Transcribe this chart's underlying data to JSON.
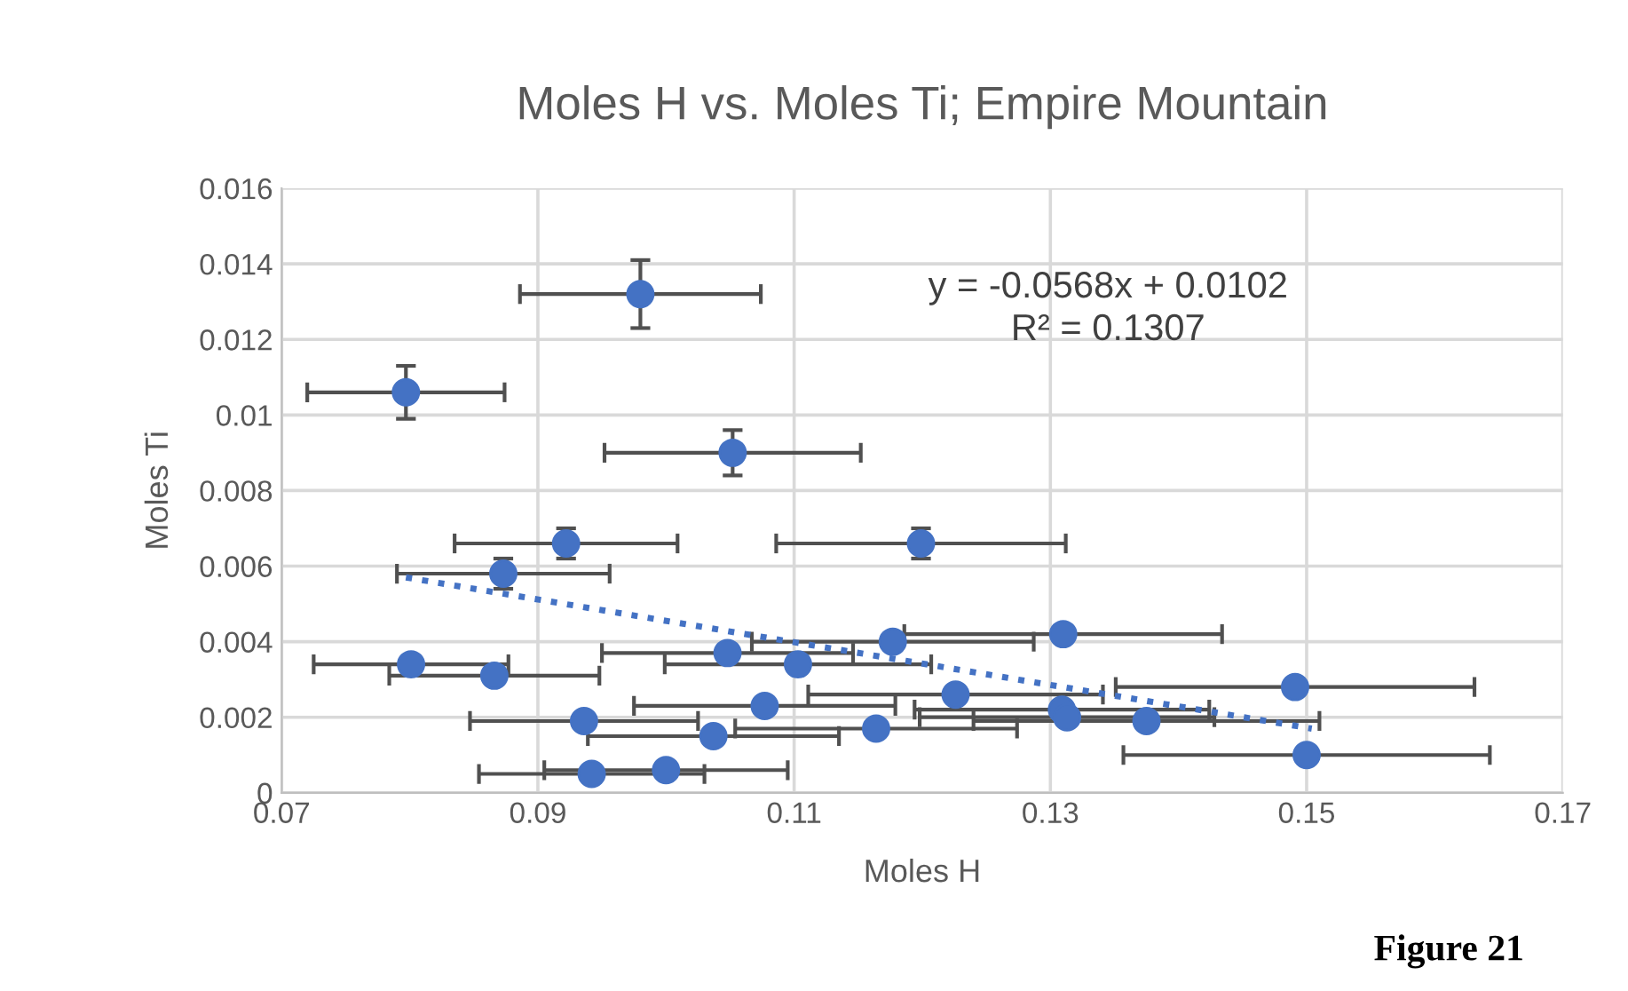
{
  "chart_data": {
    "type": "scatter",
    "title": "Moles H vs. Moles Ti; Empire Mountain",
    "xlabel": "Moles H",
    "ylabel": "Moles Ti",
    "xlim": [
      0.07,
      0.17
    ],
    "xticks": [
      0.07,
      0.09,
      0.11,
      0.13,
      0.15,
      0.17
    ],
    "ylim": [
      0,
      0.016
    ],
    "yticks": [
      0,
      0.002,
      0.004,
      0.006,
      0.008,
      0.01,
      0.012,
      0.014,
      0.016
    ],
    "grid": true,
    "annotations": [
      "y = -0.0568x + 0.0102\nR² = 0.1307",
      "Figure 21"
    ],
    "series": [
      {
        "color": "#4472c4",
        "marker": "circle",
        "x": [
          0.098,
          0.0797,
          0.1052,
          0.0922,
          0.1199,
          0.0873,
          0.131,
          0.1177,
          0.1048,
          0.0801,
          0.1103,
          0.0866,
          0.1491,
          0.1226,
          0.1077,
          0.1309,
          0.1313,
          0.1375,
          0.0936,
          0.1037,
          0.1164,
          0.15,
          0.1,
          0.0942
        ],
        "values": [
          0.0132,
          0.0106,
          0.009,
          0.0066,
          0.0066,
          0.0058,
          0.0042,
          0.004,
          0.0037,
          0.0034,
          0.0034,
          0.0031,
          0.0028,
          0.0026,
          0.0023,
          0.0022,
          0.002,
          0.0019,
          0.0019,
          0.0015,
          0.0017,
          0.001,
          0.0006,
          0.0005
        ],
        "errors": [
          0.0009,
          0.0007,
          0.0006,
          0.0004,
          0.0004,
          0.0004,
          null,
          null,
          null,
          null,
          null,
          null,
          null,
          null,
          null,
          null,
          null,
          null,
          null,
          null,
          null,
          null,
          null,
          null
        ],
        "xerrors": [
          0.0094,
          0.0077,
          0.01,
          0.0087,
          0.0113,
          0.0083,
          0.0124,
          0.011,
          0.0098,
          0.0076,
          0.0104,
          0.0082,
          0.014,
          0.0115,
          0.0102,
          0.0115,
          0.0115,
          0.0135,
          0.0089,
          0.0098,
          0.011,
          0.0143,
          0.0095,
          0.0088
        ]
      },
      {
        "type": "line",
        "color": "#4472c4",
        "line_style": "dotted",
        "x": [
          0.0797,
          0.1504
        ],
        "values": [
          0.0057,
          0.0017
        ]
      }
    ]
  }
}
